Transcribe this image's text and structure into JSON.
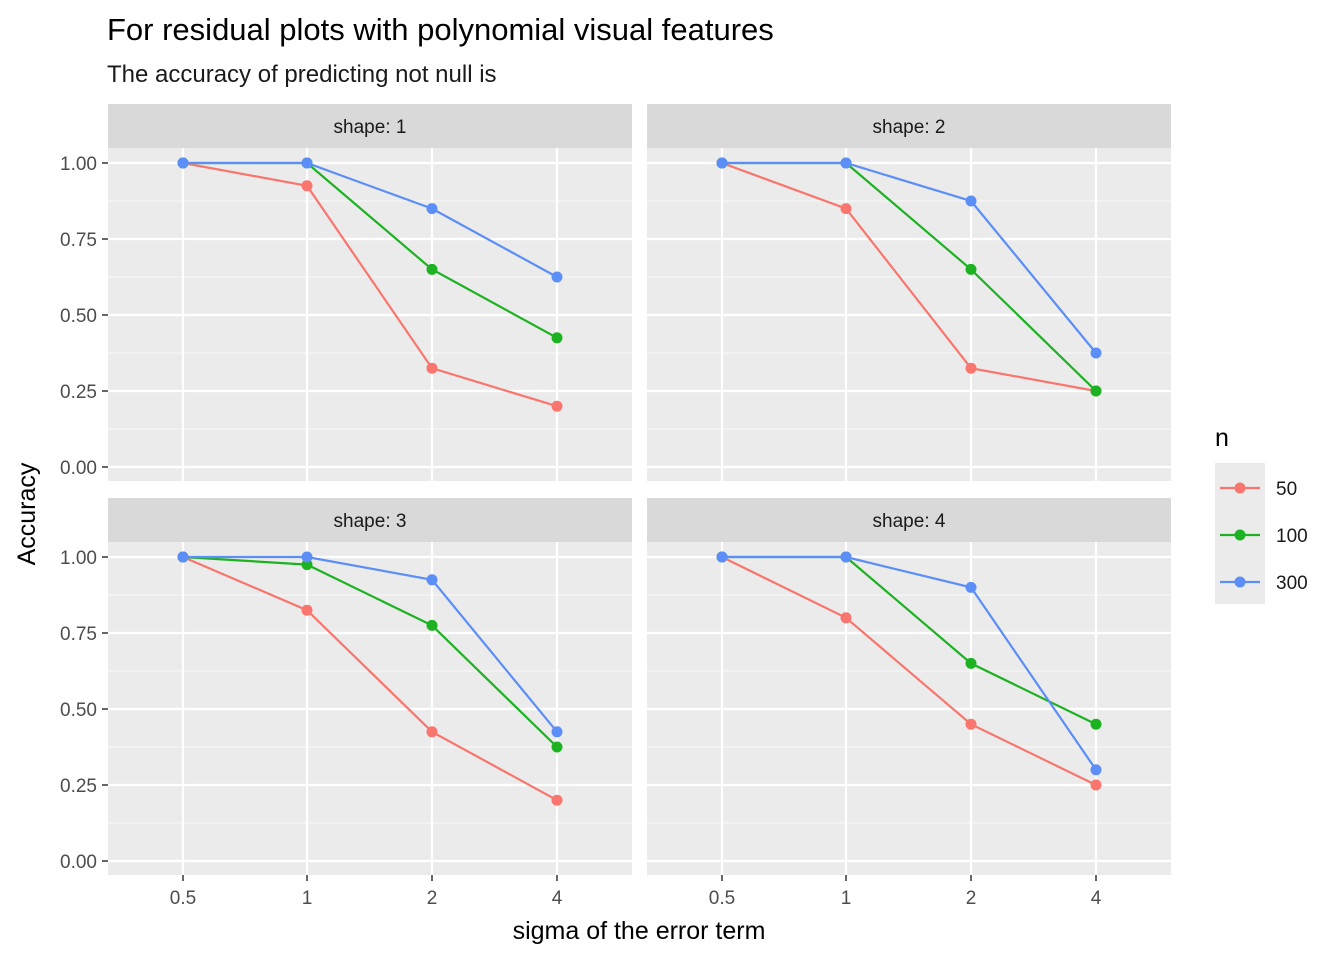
{
  "chart_data": {
    "type": "line",
    "title": "For residual plots with polynomial visual features",
    "subtitle": "The accuracy of predicting not null is",
    "xlabel": "sigma of the error term",
    "ylabel": "Accuracy",
    "categories": [
      "0.5",
      "1",
      "2",
      "4"
    ],
    "y_ticks": [
      "0.00",
      "0.25",
      "0.50",
      "0.75",
      "1.00"
    ],
    "ylim": [
      -0.025,
      1.2
    ],
    "grid": true,
    "legend": {
      "title": "n",
      "position": "right",
      "entries": [
        "50",
        "100",
        "300"
      ]
    },
    "colors": {
      "50": "#F8766D",
      "100": "#1CB222",
      "300": "#5B8EF7"
    },
    "facets": [
      {
        "label": "shape: 1",
        "series": [
          {
            "name": "50",
            "values": [
              1.0,
              0.925,
              0.325,
              0.2
            ]
          },
          {
            "name": "100",
            "values": [
              1.0,
              1.0,
              0.65,
              0.425
            ]
          },
          {
            "name": "300",
            "values": [
              1.0,
              1.0,
              0.85,
              0.625
            ]
          }
        ]
      },
      {
        "label": "shape: 2",
        "series": [
          {
            "name": "50",
            "values": [
              1.0,
              0.85,
              0.325,
              0.25
            ]
          },
          {
            "name": "100",
            "values": [
              1.0,
              1.0,
              0.65,
              0.25
            ]
          },
          {
            "name": "300",
            "values": [
              1.0,
              1.0,
              0.875,
              0.375
            ]
          }
        ]
      },
      {
        "label": "shape: 3",
        "series": [
          {
            "name": "50",
            "values": [
              1.0,
              0.825,
              0.425,
              0.2
            ]
          },
          {
            "name": "100",
            "values": [
              1.0,
              0.975,
              0.775,
              0.375
            ]
          },
          {
            "name": "300",
            "values": [
              1.0,
              1.0,
              0.925,
              0.425
            ]
          }
        ]
      },
      {
        "label": "shape: 4",
        "series": [
          {
            "name": "50",
            "values": [
              1.0,
              0.8,
              0.45,
              0.25
            ]
          },
          {
            "name": "100",
            "values": [
              1.0,
              1.0,
              0.65,
              0.45
            ]
          },
          {
            "name": "300",
            "values": [
              1.0,
              1.0,
              0.9,
              0.3
            ]
          }
        ]
      }
    ]
  }
}
